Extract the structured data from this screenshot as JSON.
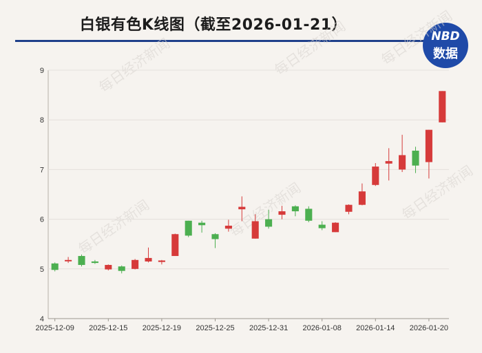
{
  "title": "白银有色K线图（截至2026-01-21）",
  "logo": {
    "line1": "NBD",
    "line2": "数据"
  },
  "watermark": "每日经济新闻",
  "colors": {
    "up": "#d63a3a",
    "down": "#4caf50",
    "rule": "#1e3f8a",
    "logo": "#1f4aa8"
  },
  "chart_data": {
    "type": "candlestick",
    "title": "白银有色K线图（截至2026-01-21）",
    "ylim": [
      4,
      9
    ],
    "yticks": [
      4,
      5,
      6,
      7,
      8,
      9
    ],
    "x_tick_labels": [
      "2025-12-09",
      "2025-12-15",
      "2025-12-19",
      "2025-12-25",
      "2025-12-31",
      "2026-01-08",
      "2026-01-14",
      "2026-01-20"
    ],
    "x_tick_positions": [
      0,
      4,
      8,
      12,
      16,
      20,
      24,
      28
    ],
    "candles": [
      {
        "o": 5.11,
        "h": 5.13,
        "l": 4.95,
        "c": 4.98
      },
      {
        "o": 5.16,
        "h": 5.24,
        "l": 5.12,
        "c": 5.18
      },
      {
        "o": 5.26,
        "h": 5.29,
        "l": 5.05,
        "c": 5.08
      },
      {
        "o": 5.15,
        "h": 5.18,
        "l": 5.1,
        "c": 5.12
      },
      {
        "o": 4.99,
        "h": 5.09,
        "l": 4.97,
        "c": 5.08
      },
      {
        "o": 5.05,
        "h": 5.07,
        "l": 4.91,
        "c": 4.96
      },
      {
        "o": 5.0,
        "h": 5.2,
        "l": 4.99,
        "c": 5.18
      },
      {
        "o": 5.15,
        "h": 5.43,
        "l": 5.13,
        "c": 5.22
      },
      {
        "o": 5.14,
        "h": 5.18,
        "l": 5.09,
        "c": 5.17
      },
      {
        "o": 5.26,
        "h": 5.71,
        "l": 5.26,
        "c": 5.7
      },
      {
        "o": 5.97,
        "h": 5.97,
        "l": 5.64,
        "c": 5.67
      },
      {
        "o": 5.93,
        "h": 5.97,
        "l": 5.73,
        "c": 5.88
      },
      {
        "o": 5.7,
        "h": 5.72,
        "l": 5.42,
        "c": 5.6
      },
      {
        "o": 5.81,
        "h": 5.99,
        "l": 5.75,
        "c": 5.87
      },
      {
        "o": 6.2,
        "h": 6.46,
        "l": 5.96,
        "c": 6.25
      },
      {
        "o": 5.61,
        "h": 6.1,
        "l": 5.61,
        "c": 5.96
      },
      {
        "o": 6.0,
        "h": 6.19,
        "l": 5.81,
        "c": 5.85
      },
      {
        "o": 6.09,
        "h": 6.27,
        "l": 6.0,
        "c": 6.16
      },
      {
        "o": 6.26,
        "h": 6.28,
        "l": 6.06,
        "c": 6.16
      },
      {
        "o": 6.21,
        "h": 6.26,
        "l": 5.94,
        "c": 5.97
      },
      {
        "o": 5.89,
        "h": 5.96,
        "l": 5.78,
        "c": 5.82
      },
      {
        "o": 5.74,
        "h": 5.94,
        "l": 5.74,
        "c": 5.93
      },
      {
        "o": 6.15,
        "h": 6.3,
        "l": 6.1,
        "c": 6.29
      },
      {
        "o": 6.29,
        "h": 6.72,
        "l": 6.28,
        "c": 6.56
      },
      {
        "o": 6.69,
        "h": 7.13,
        "l": 6.67,
        "c": 7.06
      },
      {
        "o": 7.12,
        "h": 7.43,
        "l": 6.78,
        "c": 7.17
      },
      {
        "o": 7.0,
        "h": 7.7,
        "l": 6.95,
        "c": 7.29
      },
      {
        "o": 7.38,
        "h": 7.46,
        "l": 6.93,
        "c": 7.08
      },
      {
        "o": 7.15,
        "h": 7.8,
        "l": 6.82,
        "c": 7.8
      },
      {
        "o": 7.95,
        "h": 8.58,
        "l": 7.95,
        "c": 8.58
      }
    ]
  }
}
